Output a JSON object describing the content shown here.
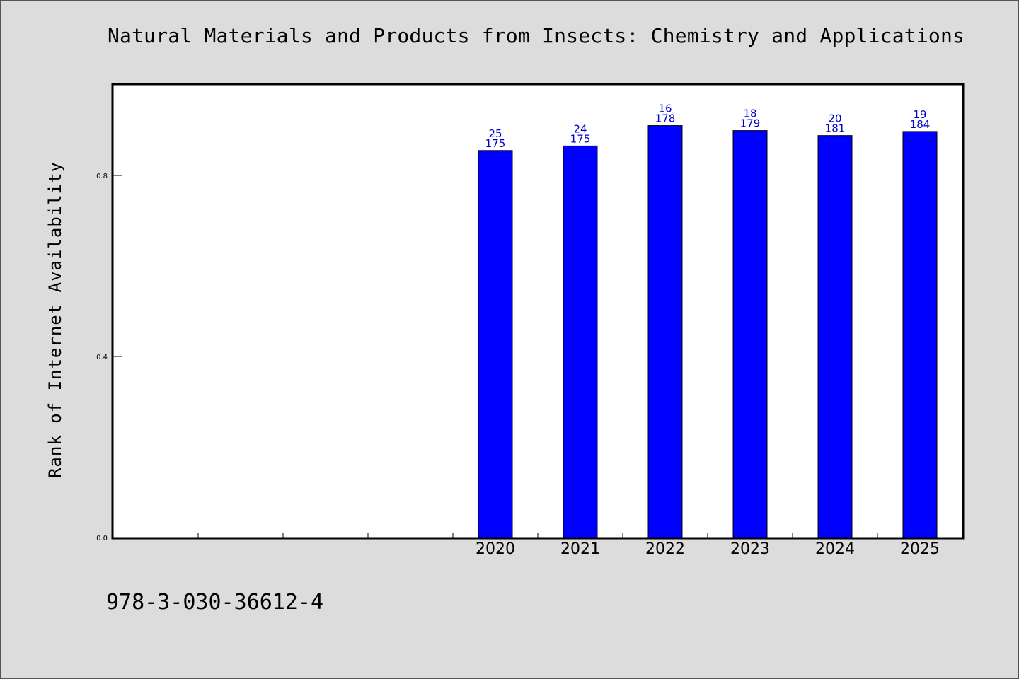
{
  "chart_data": {
    "type": "bar",
    "title": "Natural Materials and Products from Insects: Chemistry and Applications",
    "ylabel": "Rank of Internet Availability",
    "xlabel": "",
    "footer": "978-3-030-36612-4",
    "categories": [
      "2020",
      "2021",
      "2022",
      "2023",
      "2024",
      "2025"
    ],
    "slots": 10,
    "first_slot": 4,
    "values": [
      0.855,
      0.865,
      0.91,
      0.899,
      0.888,
      0.897
    ],
    "labels_top": [
      "25",
      "24",
      "16",
      "18",
      "20",
      "19"
    ],
    "labels_bottom": [
      "175",
      "175",
      "178",
      "179",
      "181",
      "184"
    ],
    "ylim": [
      0,
      1.0
    ],
    "yticks": [
      "0.0",
      "0.4",
      "0.8"
    ],
    "ytick_values": [
      0.0,
      0.4,
      0.8
    ],
    "grid": false,
    "colors": {
      "bar": "#0000ff",
      "bar_label": "#0000cc",
      "background": "#dcdcdc",
      "plot": "#ffffff"
    }
  }
}
